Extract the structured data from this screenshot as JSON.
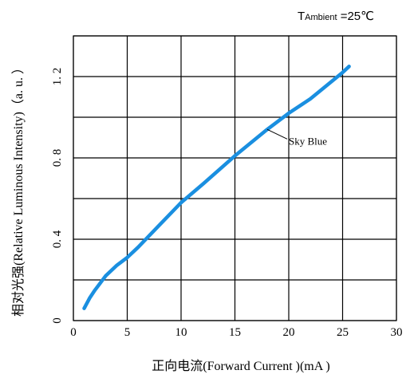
{
  "chart_data": {
    "type": "line",
    "title": "",
    "annotation": {
      "prefix": "T",
      "subscript": "Ambient",
      "suffix": " =25℃"
    },
    "xlabel": "正向电流(Forward  Current )(mA )",
    "ylabel": "相对光强(Relative Luminous  Intensity)（a. u. ）",
    "xlim": [
      0,
      30
    ],
    "ylim": [
      0,
      1.4
    ],
    "xticks": [
      0,
      5,
      10,
      15,
      20,
      25,
      30
    ],
    "yticks": [
      0,
      0.4,
      0.8,
      1.2
    ],
    "xtick_labels": [
      "0",
      "5",
      "10",
      "15",
      "20",
      "25",
      "30"
    ],
    "ytick_labels": [
      "0",
      "0. 4",
      "0. 8",
      "1. 2"
    ],
    "grid": true,
    "series": [
      {
        "name": "Sky Blue",
        "color": "#1a8fe0",
        "x": [
          1,
          1.5,
          2,
          3,
          4,
          5,
          6,
          8,
          10,
          12,
          15,
          18,
          20,
          22,
          25,
          25.6
        ],
        "y": [
          0.06,
          0.11,
          0.15,
          0.22,
          0.27,
          0.31,
          0.36,
          0.47,
          0.58,
          0.67,
          0.81,
          0.94,
          1.02,
          1.09,
          1.22,
          1.25
        ]
      }
    ]
  }
}
